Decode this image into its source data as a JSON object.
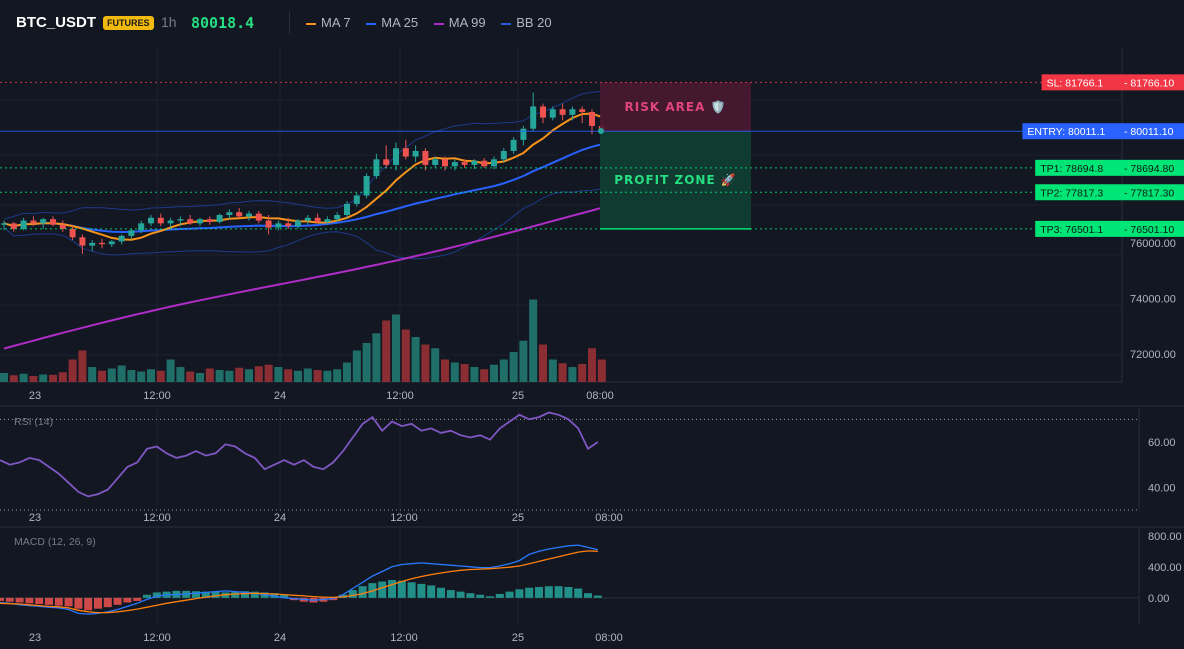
{
  "header": {
    "symbol": "BTC_USDT",
    "badge": "FUTURES",
    "interval": "1h",
    "last_price": "80018.4",
    "indicators": [
      {
        "label": "MA 7",
        "color": "#f7931a"
      },
      {
        "label": "MA 25",
        "color": "#2962ff"
      },
      {
        "label": "MA 99",
        "color": "#b02cc7"
      },
      {
        "label": "BB 20",
        "color": "#1e4fd1"
      }
    ]
  },
  "colors": {
    "up": "#26a69a",
    "down": "#ef5350",
    "volume_up": "#1f6f68",
    "volume_down": "#8b2e33",
    "ma7": "#f7931a",
    "ma25": "#2962ff",
    "ma99": "#b02cc7",
    "bb": "#1e3a8a",
    "rsi": "#7e57c2",
    "macd": "#2979ff",
    "signal": "#ff7f0e",
    "entry": "#2962ff",
    "sl": "#f23645",
    "tp": "#00e676"
  },
  "chart_data": [
    {
      "type": "candlestick",
      "name": "price",
      "ylim": [
        71000,
        83000
      ],
      "y_ticks": [
        "76000.00",
        "74000.00",
        "72000.00"
      ],
      "x_tick_labels": [
        "23",
        "12:00",
        "24",
        "12:00",
        "25",
        "08:00"
      ],
      "candles": [
        [
          76650,
          76800,
          76450,
          76700
        ],
        [
          76700,
          76750,
          76400,
          76500
        ],
        [
          76500,
          76900,
          76450,
          76800
        ],
        [
          76800,
          76950,
          76600,
          76700
        ],
        [
          76700,
          76900,
          76500,
          76850
        ],
        [
          76850,
          76950,
          76600,
          76650
        ],
        [
          76650,
          76800,
          76400,
          76500
        ],
        [
          76500,
          76600,
          76100,
          76200
        ],
        [
          76200,
          76300,
          75600,
          75900
        ],
        [
          75900,
          76100,
          75700,
          76000
        ],
        [
          76000,
          76150,
          75800,
          75950
        ],
        [
          75950,
          76100,
          75850,
          76050
        ],
        [
          76050,
          76300,
          75950,
          76250
        ],
        [
          76250,
          76500,
          76150,
          76450
        ],
        [
          76450,
          76800,
          76350,
          76700
        ],
        [
          76700,
          77000,
          76600,
          76900
        ],
        [
          76900,
          77050,
          76600,
          76700
        ],
        [
          76700,
          76900,
          76550,
          76800
        ],
        [
          76800,
          76950,
          76600,
          76850
        ],
        [
          76850,
          77000,
          76650,
          76700
        ],
        [
          76700,
          76900,
          76600,
          76850
        ],
        [
          76850,
          76950,
          76650,
          76750
        ],
        [
          76750,
          77050,
          76700,
          77000
        ],
        [
          77000,
          77200,
          76850,
          77100
        ],
        [
          77100,
          77250,
          76900,
          76950
        ],
        [
          76950,
          77150,
          76800,
          77050
        ],
        [
          77050,
          77150,
          76700,
          76800
        ],
        [
          76800,
          77000,
          76300,
          76550
        ],
        [
          76550,
          76800,
          76450,
          76700
        ],
        [
          76700,
          76900,
          76500,
          76600
        ],
        [
          76600,
          76850,
          76500,
          76800
        ],
        [
          76800,
          77000,
          76650,
          76900
        ],
        [
          76900,
          77050,
          76700,
          76750
        ],
        [
          76750,
          76950,
          76650,
          76850
        ],
        [
          76850,
          77100,
          76750,
          77000
        ],
        [
          77000,
          77500,
          76900,
          77400
        ],
        [
          77400,
          77800,
          77300,
          77700
        ],
        [
          77700,
          78500,
          77600,
          78400
        ],
        [
          78400,
          79200,
          78300,
          79000
        ],
        [
          79000,
          79500,
          78700,
          78800
        ],
        [
          78800,
          79600,
          78600,
          79400
        ],
        [
          79400,
          79700,
          79000,
          79100
        ],
        [
          79100,
          79500,
          78900,
          79300
        ],
        [
          79300,
          79400,
          78600,
          78800
        ],
        [
          78800,
          79100,
          78700,
          79000
        ],
        [
          79000,
          79100,
          78600,
          78750
        ],
        [
          78750,
          79000,
          78600,
          78900
        ],
        [
          78900,
          79000,
          78700,
          78800
        ],
        [
          78800,
          79000,
          78650,
          78950
        ],
        [
          78950,
          79050,
          78700,
          78750
        ],
        [
          78750,
          79100,
          78650,
          79000
        ],
        [
          79000,
          79400,
          78900,
          79300
        ],
        [
          79300,
          79800,
          79200,
          79700
        ],
        [
          79700,
          80200,
          79500,
          80100
        ],
        [
          80100,
          81400,
          80000,
          80900
        ],
        [
          80900,
          81000,
          80300,
          80500
        ],
        [
          80500,
          80900,
          80400,
          80800
        ],
        [
          80800,
          81000,
          80400,
          80600
        ],
        [
          80600,
          80900,
          80400,
          80800
        ],
        [
          80800,
          80900,
          80300,
          80700
        ],
        [
          80700,
          80800,
          79900,
          80200
        ],
        [
          80200,
          80400,
          79950,
          80018
        ]
      ],
      "volume": [
        120,
        90,
        110,
        80,
        100,
        95,
        130,
        300,
        420,
        200,
        150,
        180,
        220,
        160,
        140,
        170,
        150,
        300,
        200,
        140,
        120,
        180,
        160,
        150,
        190,
        170,
        210,
        230,
        200,
        170,
        150,
        180,
        160,
        150,
        170,
        260,
        420,
        520,
        650,
        820,
        900,
        700,
        600,
        500,
        450,
        300,
        260,
        240,
        200,
        170,
        230,
        300,
        400,
        550,
        1100,
        500,
        300,
        250,
        200,
        240,
        450,
        300
      ],
      "volume_max": 1200,
      "order_zones": {
        "sl": {
          "label": "SL: 81766.1",
          "value": 81766.1,
          "axis_label": "81766.10"
        },
        "entry": {
          "label": "ENTRY: 80011.1",
          "value": 80011.1,
          "axis_label": "80011.10"
        },
        "tp1": {
          "label": "TP1: 78694.8",
          "value": 78694.8,
          "axis_label": "78694.80"
        },
        "tp2": {
          "label": "TP2: 77817.3",
          "value": 77817.3,
          "axis_label": "77817.30"
        },
        "tp3": {
          "label": "TP3: 76501.1",
          "value": 76501.1,
          "axis_label": "76501.10"
        },
        "risk_label": "RISK AREA 🛡️",
        "profit_label": "PROFIT ZONE 🚀"
      }
    },
    {
      "type": "line",
      "name": "RSI (14)",
      "ylim": [
        30,
        75
      ],
      "y_ticks": [
        60,
        40
      ],
      "y_tick_labels": [
        "60.00",
        "40.00"
      ],
      "levels": [
        70,
        30
      ],
      "x_tick_labels": [
        "23",
        "12:00",
        "24",
        "12:00",
        "25",
        "08:00"
      ],
      "values": [
        52,
        50,
        51,
        53,
        52,
        49,
        46,
        42,
        38,
        36,
        37,
        39,
        44,
        49,
        51,
        57,
        58,
        55,
        53,
        54,
        56,
        54,
        55,
        59,
        58,
        55,
        53,
        48,
        50,
        52,
        50,
        52,
        49,
        48,
        51,
        56,
        62,
        68,
        71,
        65,
        69,
        67,
        68,
        65,
        66,
        64,
        65,
        63,
        62,
        63,
        61,
        66,
        69,
        72,
        70,
        71,
        73,
        72,
        70,
        66,
        57,
        60
      ]
    },
    {
      "type": "bar+line",
      "name": "MACD (12, 26, 9)",
      "ylim": [
        -350,
        900
      ],
      "y_ticks": [
        800,
        400,
        0
      ],
      "y_tick_labels": [
        "800.00",
        "400.00",
        "0.00"
      ],
      "x_tick_labels": [
        "23",
        "12:00",
        "24",
        "12:00",
        "25",
        "08:00"
      ],
      "macd": [
        -60,
        -70,
        -90,
        -100,
        -110,
        -120,
        -130,
        -150,
        -200,
        -210,
        -200,
        -180,
        -150,
        -110,
        -70,
        -20,
        20,
        40,
        40,
        50,
        60,
        70,
        80,
        90,
        80,
        70,
        60,
        40,
        20,
        0,
        -10,
        -20,
        -30,
        -20,
        -10,
        40,
        120,
        200,
        280,
        340,
        400,
        430,
        440,
        450,
        440,
        430,
        420,
        410,
        400,
        390,
        390,
        410,
        440,
        480,
        560,
        600,
        630,
        650,
        670,
        680,
        650,
        620
      ],
      "signal": [
        -70,
        -75,
        -80,
        -90,
        -100,
        -110,
        -115,
        -130,
        -160,
        -180,
        -190,
        -190,
        -180,
        -165,
        -145,
        -120,
        -95,
        -70,
        -50,
        -30,
        -10,
        10,
        25,
        40,
        50,
        55,
        58,
        55,
        50,
        42,
        33,
        25,
        16,
        10,
        6,
        12,
        30,
        55,
        90,
        130,
        170,
        210,
        245,
        275,
        300,
        320,
        340,
        355,
        365,
        370,
        375,
        385,
        395,
        410,
        440,
        470,
        500,
        530,
        560,
        590,
        605,
        600
      ],
      "histogram": [
        -40,
        -50,
        -60,
        -70,
        -80,
        -90,
        -100,
        -110,
        -140,
        -160,
        -140,
        -120,
        -90,
        -60,
        -40,
        40,
        70,
        80,
        90,
        90,
        85,
        80,
        75,
        70,
        80,
        85,
        80,
        70,
        60,
        40,
        -30,
        -50,
        -60,
        -50,
        -30,
        40,
        100,
        150,
        190,
        210,
        230,
        220,
        200,
        180,
        160,
        130,
        100,
        80,
        60,
        40,
        20,
        50,
        80,
        110,
        130,
        140,
        150,
        150,
        140,
        120,
        60,
        30
      ]
    }
  ]
}
